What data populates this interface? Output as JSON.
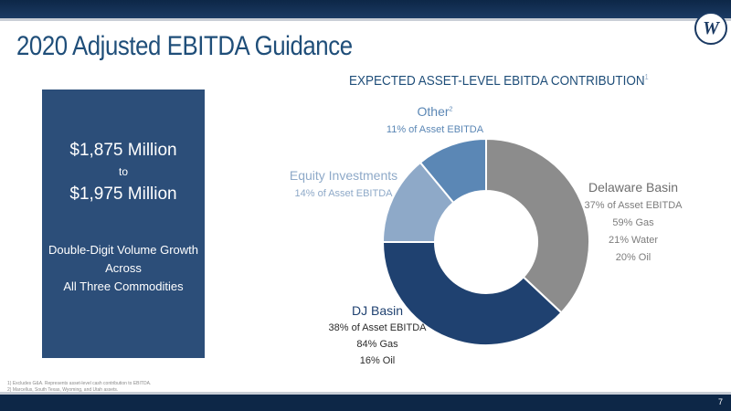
{
  "page": {
    "title": "2020 Adjusted EBITDA Guidance",
    "page_number": "7"
  },
  "logo": {
    "letter": "W"
  },
  "guidance": {
    "low": "$1,875 Million",
    "connector": "to",
    "high": "$1,975 Million",
    "desc_lines": [
      "Double-Digit Volume Growth",
      "Across",
      "All Three Commodities"
    ]
  },
  "footnotes": [
    "1) Excludes G&A. Represents asset-level cash contribution to EBITDA.",
    "2) Marcellus, South Texas, Wyoming, and Utah assets."
  ],
  "chart_data": {
    "type": "pie",
    "donut": true,
    "title": "EXPECTED ASSET-LEVEL EBITDA CONTRIBUTION",
    "title_footnote": "1",
    "slices": [
      {
        "name": "Delaware Basin",
        "value": 37,
        "pct_label": "37% of Asset EBITDA",
        "details": [
          "59% Gas",
          "21% Water",
          "20% Oil"
        ],
        "color": "#8c8c8c",
        "label_color": "#6e6e6e"
      },
      {
        "name": "DJ Basin",
        "value": 38,
        "pct_label": "38% of Asset EBITDA",
        "details": [
          "84% Gas",
          "16% Oil"
        ],
        "color": "#1f4170",
        "label_color": "#1f4170"
      },
      {
        "name": "Equity Investments",
        "value": 14,
        "pct_label": "14% of Asset EBITDA",
        "details": [],
        "color": "#8ea9c8",
        "label_color": "#8ea9c8"
      },
      {
        "name": "Other",
        "name_footnote": "2",
        "value": 11,
        "pct_label": "11% of Asset EBITDA",
        "details": [],
        "color": "#5b87b5",
        "label_color": "#5b87b5"
      }
    ]
  }
}
